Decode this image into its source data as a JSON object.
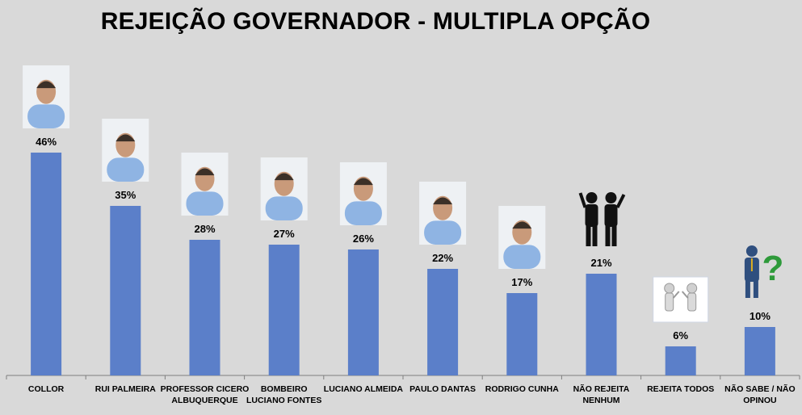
{
  "chart_data": {
    "type": "bar",
    "title": "REJEIÇÃO GOVERNADOR - MULTIPLA OPÇÃO",
    "categories": [
      "COLLOR",
      "RUI PALMEIRA",
      "PROFESSOR CICERO ALBUQUERQUE",
      "BOMBEIRO LUCIANO FONTES",
      "LUCIANO ALMEIDA",
      "PAULO DANTAS",
      "RODRIGO CUNHA",
      "NÃO REJEITA NENHUM",
      "REJEITA TODOS",
      "NÃO SABE / NÃO OPINOU"
    ],
    "category_lines": [
      [
        "COLLOR"
      ],
      [
        "RUI PALMEIRA"
      ],
      [
        "PROFESSOR CICERO",
        "ALBUQUERQUE"
      ],
      [
        "BOMBEIRO",
        "LUCIANO FONTES"
      ],
      [
        "LUCIANO ALMEIDA"
      ],
      [
        "PAULO DANTAS"
      ],
      [
        "RODRIGO CUNHA"
      ],
      [
        "NÃO REJEITA",
        "NENHUM"
      ],
      [
        "REJEITA TODOS"
      ],
      [
        "NÃO SABE / NÃO",
        "OPINOU"
      ]
    ],
    "values": [
      46,
      35,
      28,
      27,
      26,
      22,
      17,
      21,
      6,
      10
    ],
    "value_labels": [
      "46%",
      "35%",
      "28%",
      "27%",
      "26%",
      "22%",
      "17%",
      "21%",
      "6%",
      "10%"
    ],
    "unit": "%",
    "ylim": [
      0,
      50
    ],
    "grid": false,
    "bar_color": "#5b7fc9",
    "background": "#d9d9d9",
    "images": [
      "portrait-photo",
      "portrait-photo",
      "portrait-photo",
      "portrait-photo",
      "portrait-photo",
      "portrait-photo",
      "portrait-photo",
      "two-people-icon",
      "two-figures-disagree-icon",
      "person-question-mark-icon"
    ]
  }
}
